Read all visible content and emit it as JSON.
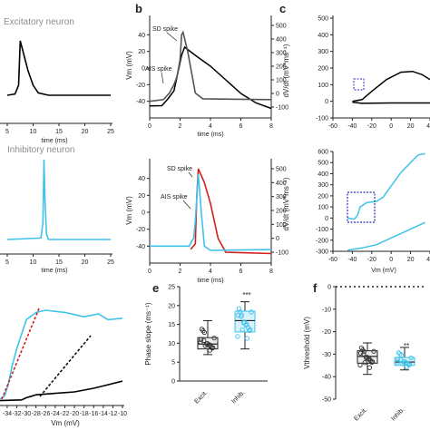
{
  "panel_labels": {
    "b": "b",
    "c": "c",
    "e": "e",
    "f": "f"
  },
  "labels": {
    "excitatory_neuron": "Excitatory neuron",
    "inhibitory_neuron": "Inhibitory neuron"
  },
  "colors": {
    "excitatory": "#000000",
    "excitatory_fit": "#555555",
    "inhibitory": "#3fc3ea",
    "inhibitory_fit": "#d21f1f",
    "box_outline": "#2b2bb8",
    "slope_line": "#d21f1f"
  },
  "chart_data": [
    {
      "id": "a-top",
      "type": "line",
      "xlabel": "time (ms)",
      "ylabel": "",
      "xlim": [
        5,
        25
      ],
      "xticks": [
        5,
        10,
        15,
        20,
        25
      ],
      "series": [
        {
          "values": [
            [
              5,
              -62
            ],
            [
              6.5,
              -60
            ],
            [
              7.2,
              -45
            ],
            [
              7.5,
              30
            ],
            [
              7.8,
              20
            ],
            [
              9,
              -20
            ],
            [
              10,
              -45
            ],
            [
              11,
              -58
            ],
            [
              13,
              -62
            ],
            [
              25,
              -62
            ]
          ]
        }
      ]
    },
    {
      "id": "a-bottom",
      "type": "line",
      "xlabel": "time (ms)",
      "ylabel": "",
      "xlim": [
        5,
        25
      ],
      "xticks": [
        5,
        10,
        15,
        20,
        25
      ],
      "series": [
        {
          "values": [
            [
              5,
              -62
            ],
            [
              11.5,
              -60
            ],
            [
              11.9,
              -40
            ],
            [
              12.1,
              45
            ],
            [
              12.3,
              -10
            ],
            [
              12.6,
              -55
            ],
            [
              13,
              -62
            ],
            [
              25,
              -62
            ]
          ]
        }
      ]
    },
    {
      "id": "b-top",
      "type": "line",
      "xlabel": "time (ms)",
      "ylabel": "Vm (mV)",
      "y2label": "",
      "xlim": [
        0,
        8
      ],
      "xticks": [
        0,
        2,
        4,
        6,
        8
      ],
      "ylim": [
        -60,
        60
      ],
      "yticks": [
        -40,
        -20,
        0,
        20,
        40
      ],
      "y2lim": [
        -100,
        500
      ],
      "y2ticks": [
        -100,
        0,
        100,
        200,
        300,
        400,
        500
      ],
      "annotations": [
        "SD spike",
        "AIS spike"
      ],
      "series": [
        {
          "values": [
            [
              0,
              -40
            ],
            [
              0.9,
              -38
            ],
            [
              1.3,
              -30
            ],
            [
              1.6,
              -20
            ],
            [
              1.8,
              -10
            ],
            [
              2.0,
              10
            ],
            [
              2.1,
              40
            ],
            [
              2.2,
              43
            ],
            [
              2.5,
              20
            ],
            [
              3,
              -30
            ],
            [
              3.5,
              -37
            ],
            [
              8,
              -38
            ]
          ]
        },
        {
          "values": [
            [
              0,
              -92
            ],
            [
              0.8,
              -90
            ],
            [
              1.2,
              -40
            ],
            [
              1.6,
              20
            ],
            [
              2.1,
              280
            ],
            [
              2.3,
              340
            ],
            [
              3,
              280
            ],
            [
              4,
              200
            ],
            [
              5,
              100
            ],
            [
              6,
              0
            ],
            [
              7,
              -70
            ],
            [
              8,
              -110
            ]
          ]
        }
      ]
    },
    {
      "id": "b-bottom",
      "type": "line",
      "xlabel": "time (ms)",
      "ylabel": "Vm (mV)",
      "y2label": "",
      "xlim": [
        0,
        8
      ],
      "xticks": [
        0,
        2,
        4,
        6,
        8
      ],
      "ylim": [
        -60,
        60
      ],
      "yticks": [
        -40,
        -20,
        0,
        20,
        40
      ],
      "y2lim": [
        -100,
        500
      ],
      "y2ticks": [
        -100,
        0,
        100,
        200,
        300,
        400,
        500
      ],
      "annotations": [
        "SD spike",
        "AIS spike"
      ],
      "series": [
        {
          "values": [
            [
              0,
              -40
            ],
            [
              2.6,
              -40
            ],
            [
              2.9,
              -30
            ],
            [
              3.0,
              -10
            ],
            [
              3.2,
              45
            ],
            [
              3.4,
              0
            ],
            [
              3.6,
              -40
            ],
            [
              4,
              -45
            ],
            [
              8,
              -44
            ]
          ]
        },
        {
          "values": [
            [
              2.7,
              -80
            ],
            [
              3.0,
              -40
            ],
            [
              3.1,
              300
            ],
            [
              3.2,
              500
            ],
            [
              3.6,
              400
            ],
            [
              4,
              250
            ],
            [
              4.5,
              0
            ],
            [
              5,
              -100
            ],
            [
              8,
              -110
            ]
          ]
        }
      ]
    },
    {
      "id": "c-top",
      "type": "line",
      "xlabel": "",
      "ylabel": "dV/dt (mV*ms⁻¹)",
      "xlim": [
        -60,
        40
      ],
      "xticks": [
        -60,
        -40,
        -20,
        0,
        20,
        40
      ],
      "ylim": [
        -100,
        500
      ],
      "yticks": [
        -100,
        0,
        100,
        200,
        300,
        400,
        500
      ],
      "series": [
        {
          "values": [
            [
              -40,
              0
            ],
            [
              -30,
              10
            ],
            [
              -20,
              60
            ],
            [
              -5,
              130
            ],
            [
              10,
              175
            ],
            [
              22,
              180
            ],
            [
              32,
              160
            ],
            [
              40,
              130
            ]
          ]
        },
        {
          "values": [
            [
              40,
              -10
            ],
            [
              0,
              -10
            ],
            [
              -30,
              -12
            ],
            [
              -40,
              -5
            ]
          ]
        }
      ]
    },
    {
      "id": "c-bottom",
      "type": "line",
      "xlabel": "Vm (mV)",
      "ylabel": "dV/dt (mV*ms⁻¹)",
      "xlim": [
        -60,
        40
      ],
      "xticks": [
        -60,
        -40,
        -20,
        0,
        20,
        40
      ],
      "ylim": [
        -300,
        600
      ],
      "yticks": [
        -300,
        -200,
        -100,
        0,
        100,
        200,
        300,
        400,
        500,
        600
      ],
      "series": [
        {
          "values": [
            [
              -45,
              0
            ],
            [
              -38,
              -10
            ],
            [
              -35,
              20
            ],
            [
              -32,
              100
            ],
            [
              -25,
              140
            ],
            [
              -15,
              150
            ],
            [
              -8,
              190
            ],
            [
              0,
              290
            ],
            [
              10,
              410
            ],
            [
              20,
              500
            ],
            [
              28,
              570
            ],
            [
              35,
              580
            ]
          ]
        },
        {
          "values": [
            [
              35,
              -40
            ],
            [
              20,
              -100
            ],
            [
              0,
              -180
            ],
            [
              -15,
              -240
            ],
            [
              -30,
              -270
            ],
            [
              -45,
              -290
            ]
          ]
        }
      ]
    },
    {
      "id": "d",
      "type": "line",
      "xlabel": "Vm (mV)",
      "ylabel": "",
      "xlim": [
        -35.5,
        -10
      ],
      "xticks": [
        -34,
        -32,
        -30,
        -28,
        -26,
        -24,
        -22,
        -20,
        -18,
        -16,
        -14,
        -12,
        -10
      ],
      "series": [
        {
          "values": [
            [
              -35.5,
              0
            ],
            [
              -34.5,
              0.5
            ],
            [
              -33.8,
              2
            ],
            [
              -33,
              4.5
            ],
            [
              -32,
              7
            ],
            [
              -31,
              9
            ],
            [
              -30,
              11
            ],
            [
              -28,
              12
            ],
            [
              -26,
              12.3
            ],
            [
              -22,
              12
            ],
            [
              -18,
              11.4
            ],
            [
              -15,
              11.8
            ],
            [
              -13,
              11
            ],
            [
              -10,
              11.2
            ]
          ]
        },
        {
          "values": [
            [
              -35.5,
              -0.2
            ],
            [
              -31,
              -0.1
            ],
            [
              -30,
              0.2
            ],
            [
              -29,
              0.4
            ],
            [
              -28,
              0.6
            ],
            [
              -24,
              0.8
            ],
            [
              -20,
              1
            ],
            [
              -16,
              1.5
            ],
            [
              -13,
              2
            ],
            [
              -10,
              2.5
            ]
          ]
        }
      ]
    },
    {
      "id": "e",
      "type": "box",
      "xlabel": "",
      "ylabel": "Phase slope (ms⁻¹)",
      "ylim": [
        0,
        25
      ],
      "yticks": [
        0,
        5,
        10,
        15,
        20,
        25
      ],
      "categories": [
        "Excit.",
        "Inhib."
      ],
      "significance": "***",
      "boxes": [
        {
          "min": 7,
          "q1": 8.5,
          "median": 9.8,
          "q3": 11.5,
          "max": 16
        },
        {
          "min": 8.5,
          "q1": 13,
          "median": 16,
          "q3": 18.5,
          "max": 21
        }
      ]
    },
    {
      "id": "f",
      "type": "box",
      "xlabel": "",
      "ylabel": "Vthreshold (mV)",
      "ylim": [
        -50,
        0
      ],
      "yticks": [
        -50,
        -40,
        -30,
        -20,
        -10,
        0
      ],
      "categories": [
        "Excit.",
        "Inhib."
      ],
      "significance": "**",
      "reference_line": 0,
      "boxes": [
        {
          "min": -39,
          "q1": -34,
          "median": -31,
          "q3": -28.5,
          "max": -25
        },
        {
          "min": -37,
          "q1": -35,
          "median": -33.5,
          "q3": -31.5,
          "max": -27
        }
      ]
    }
  ]
}
